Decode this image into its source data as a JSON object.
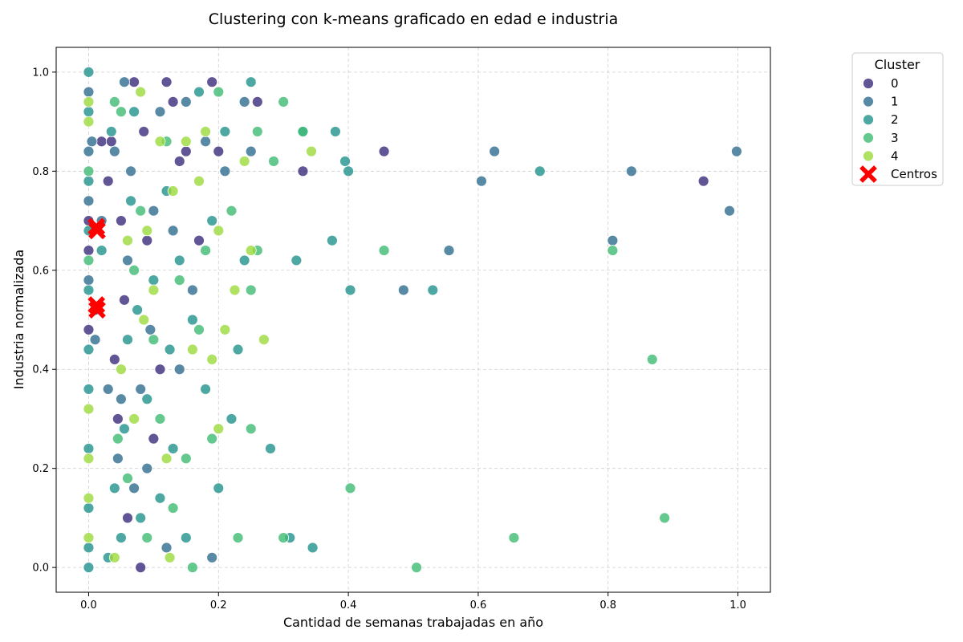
{
  "chart_data": {
    "type": "scatter",
    "title": "Clustering con k-means graficado en edad e industria",
    "xlabel": "Cantidad de semanas trabajadas en año",
    "ylabel": "Industria normalizada",
    "xlim": [
      -0.05,
      1.05
    ],
    "ylim": [
      -0.05,
      1.05
    ],
    "xticks": [
      0.0,
      0.2,
      0.4,
      0.6,
      0.8,
      1.0
    ],
    "yticks": [
      0.0,
      0.2,
      0.4,
      0.6,
      0.8,
      1.0
    ],
    "xtick_labels": [
      "0.0",
      "0.2",
      "0.4",
      "0.6",
      "0.8",
      "1.0"
    ],
    "ytick_labels": [
      "0.0",
      "0.2",
      "0.4",
      "0.6",
      "0.8",
      "1.0"
    ],
    "grid": true,
    "legend": {
      "title": "Cluster",
      "placement": "outside-right-top",
      "entries": [
        "0",
        "1",
        "2",
        "3",
        "4",
        "Centros"
      ]
    },
    "series": [
      {
        "name": "0",
        "color": "#3b2b7a",
        "points": [
          [
            0.0,
            0.48
          ],
          [
            0.0,
            0.64
          ],
          [
            0.0,
            0.7
          ],
          [
            0.01,
            0.52
          ],
          [
            0.02,
            0.86
          ],
          [
            0.03,
            0.78
          ],
          [
            0.035,
            0.86
          ],
          [
            0.04,
            0.42
          ],
          [
            0.045,
            0.3
          ],
          [
            0.05,
            0.7
          ],
          [
            0.055,
            0.54
          ],
          [
            0.06,
            0.1
          ],
          [
            0.07,
            0.98
          ],
          [
            0.08,
            0.0
          ],
          [
            0.085,
            0.88
          ],
          [
            0.09,
            0.66
          ],
          [
            0.1,
            0.26
          ],
          [
            0.11,
            0.4
          ],
          [
            0.12,
            0.98
          ],
          [
            0.13,
            0.94
          ],
          [
            0.14,
            0.82
          ],
          [
            0.15,
            0.84
          ],
          [
            0.17,
            0.66
          ],
          [
            0.19,
            0.98
          ],
          [
            0.2,
            0.84
          ],
          [
            0.26,
            0.94
          ],
          [
            0.33,
            0.8
          ],
          [
            0.455,
            0.84
          ],
          [
            0.947,
            0.78
          ]
        ]
      },
      {
        "name": "1",
        "color": "#2e6b8e",
        "points": [
          [
            0.0,
            0.58
          ],
          [
            0.0,
            0.74
          ],
          [
            0.0,
            0.84
          ],
          [
            0.0,
            0.96
          ],
          [
            0.005,
            0.86
          ],
          [
            0.01,
            0.46
          ],
          [
            0.02,
            0.7
          ],
          [
            0.03,
            0.36
          ],
          [
            0.04,
            0.84
          ],
          [
            0.045,
            0.22
          ],
          [
            0.05,
            0.34
          ],
          [
            0.055,
            0.98
          ],
          [
            0.06,
            0.62
          ],
          [
            0.065,
            0.8
          ],
          [
            0.07,
            0.16
          ],
          [
            0.08,
            0.36
          ],
          [
            0.09,
            0.2
          ],
          [
            0.095,
            0.48
          ],
          [
            0.1,
            0.72
          ],
          [
            0.11,
            0.92
          ],
          [
            0.12,
            0.04
          ],
          [
            0.13,
            0.68
          ],
          [
            0.14,
            0.4
          ],
          [
            0.15,
            0.94
          ],
          [
            0.16,
            0.56
          ],
          [
            0.18,
            0.86
          ],
          [
            0.19,
            0.02
          ],
          [
            0.21,
            0.8
          ],
          [
            0.24,
            0.94
          ],
          [
            0.25,
            0.84
          ],
          [
            0.485,
            0.56
          ],
          [
            0.555,
            0.64
          ],
          [
            0.605,
            0.78
          ],
          [
            0.625,
            0.84
          ],
          [
            0.807,
            0.66
          ],
          [
            0.836,
            0.8
          ],
          [
            0.987,
            0.72
          ],
          [
            0.998,
            0.84
          ]
        ]
      },
      {
        "name": "2",
        "color": "#20928c",
        "points": [
          [
            0.0,
            0.0
          ],
          [
            0.0,
            0.04
          ],
          [
            0.0,
            0.12
          ],
          [
            0.0,
            0.24
          ],
          [
            0.0,
            0.36
          ],
          [
            0.0,
            0.44
          ],
          [
            0.0,
            0.56
          ],
          [
            0.0,
            0.68
          ],
          [
            0.0,
            0.78
          ],
          [
            0.0,
            0.92
          ],
          [
            0.0,
            1.0
          ],
          [
            0.02,
            0.64
          ],
          [
            0.03,
            0.02
          ],
          [
            0.035,
            0.88
          ],
          [
            0.04,
            0.16
          ],
          [
            0.05,
            0.06
          ],
          [
            0.055,
            0.28
          ],
          [
            0.06,
            0.46
          ],
          [
            0.065,
            0.74
          ],
          [
            0.07,
            0.92
          ],
          [
            0.075,
            0.52
          ],
          [
            0.08,
            0.1
          ],
          [
            0.09,
            0.34
          ],
          [
            0.1,
            0.58
          ],
          [
            0.11,
            0.14
          ],
          [
            0.12,
            0.76
          ],
          [
            0.125,
            0.44
          ],
          [
            0.13,
            0.24
          ],
          [
            0.14,
            0.62
          ],
          [
            0.15,
            0.06
          ],
          [
            0.16,
            0.5
          ],
          [
            0.17,
            0.96
          ],
          [
            0.18,
            0.36
          ],
          [
            0.19,
            0.7
          ],
          [
            0.2,
            0.16
          ],
          [
            0.21,
            0.88
          ],
          [
            0.22,
            0.3
          ],
          [
            0.23,
            0.44
          ],
          [
            0.24,
            0.62
          ],
          [
            0.25,
            0.98
          ],
          [
            0.28,
            0.24
          ],
          [
            0.31,
            0.06
          ],
          [
            0.32,
            0.62
          ],
          [
            0.33,
            0.88
          ],
          [
            0.345,
            0.04
          ],
          [
            0.38,
            0.88
          ],
          [
            0.395,
            0.82
          ],
          [
            0.4,
            0.8
          ],
          [
            0.403,
            0.56
          ],
          [
            0.53,
            0.56
          ],
          [
            0.375,
            0.66
          ],
          [
            0.695,
            0.8
          ]
        ]
      },
      {
        "name": "3",
        "color": "#3fbc73",
        "points": [
          [
            0.0,
            0.62
          ],
          [
            0.0,
            0.8
          ],
          [
            0.04,
            0.94
          ],
          [
            0.045,
            0.26
          ],
          [
            0.05,
            0.92
          ],
          [
            0.06,
            0.18
          ],
          [
            0.07,
            0.6
          ],
          [
            0.08,
            0.72
          ],
          [
            0.09,
            0.06
          ],
          [
            0.1,
            0.46
          ],
          [
            0.11,
            0.3
          ],
          [
            0.12,
            0.86
          ],
          [
            0.13,
            0.12
          ],
          [
            0.14,
            0.58
          ],
          [
            0.15,
            0.22
          ],
          [
            0.16,
            0.0
          ],
          [
            0.17,
            0.48
          ],
          [
            0.18,
            0.64
          ],
          [
            0.19,
            0.26
          ],
          [
            0.2,
            0.96
          ],
          [
            0.22,
            0.72
          ],
          [
            0.23,
            0.06
          ],
          [
            0.25,
            0.28
          ],
          [
            0.25,
            0.56
          ],
          [
            0.26,
            0.88
          ],
          [
            0.26,
            0.64
          ],
          [
            0.285,
            0.82
          ],
          [
            0.3,
            0.94
          ],
          [
            0.3,
            0.06
          ],
          [
            0.33,
            0.88
          ],
          [
            0.455,
            0.64
          ],
          [
            0.403,
            0.16
          ],
          [
            0.505,
            0.0
          ],
          [
            0.655,
            0.06
          ],
          [
            0.807,
            0.64
          ],
          [
            0.868,
            0.42
          ],
          [
            0.887,
            0.1
          ]
        ]
      },
      {
        "name": "4",
        "color": "#9bd93c",
        "points": [
          [
            0.0,
            0.06
          ],
          [
            0.0,
            0.14
          ],
          [
            0.0,
            0.22
          ],
          [
            0.0,
            0.32
          ],
          [
            0.0,
            0.9
          ],
          [
            0.0,
            0.94
          ],
          [
            0.04,
            0.02
          ],
          [
            0.05,
            0.4
          ],
          [
            0.06,
            0.66
          ],
          [
            0.07,
            0.3
          ],
          [
            0.08,
            0.96
          ],
          [
            0.085,
            0.5
          ],
          [
            0.09,
            0.68
          ],
          [
            0.1,
            0.56
          ],
          [
            0.11,
            0.86
          ],
          [
            0.12,
            0.22
          ],
          [
            0.125,
            0.02
          ],
          [
            0.13,
            0.76
          ],
          [
            0.15,
            0.86
          ],
          [
            0.16,
            0.44
          ],
          [
            0.17,
            0.78
          ],
          [
            0.18,
            0.88
          ],
          [
            0.19,
            0.42
          ],
          [
            0.2,
            0.68
          ],
          [
            0.2,
            0.28
          ],
          [
            0.21,
            0.48
          ],
          [
            0.225,
            0.56
          ],
          [
            0.24,
            0.82
          ],
          [
            0.25,
            0.64
          ],
          [
            0.27,
            0.46
          ],
          [
            0.343,
            0.84
          ]
        ]
      }
    ],
    "centros": {
      "name": "Centros",
      "color": "#ff0000",
      "points": [
        [
          0.012,
          0.688
        ],
        [
          0.013,
          0.68
        ],
        [
          0.012,
          0.53
        ],
        [
          0.013,
          0.52
        ]
      ]
    }
  }
}
